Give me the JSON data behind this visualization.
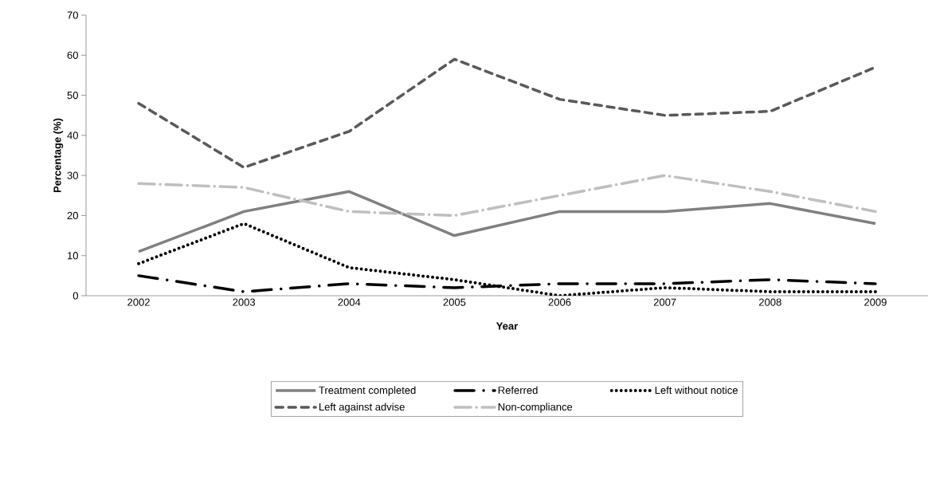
{
  "chart_data": {
    "type": "line",
    "xlabel": "Year",
    "ylabel": "Percentage (%)",
    "categories": [
      "2002",
      "2003",
      "2004",
      "2005",
      "2006",
      "2007",
      "2008",
      "2009"
    ],
    "series": [
      {
        "name": "Treatment completed",
        "color": "#808080",
        "line_style": "solid",
        "values": [
          11,
          21,
          26,
          15,
          21,
          21,
          23,
          18
        ]
      },
      {
        "name": "Referred",
        "color": "#000000",
        "line_style": "longdashdot",
        "values": [
          5,
          1,
          3,
          2,
          3,
          3,
          4,
          3
        ]
      },
      {
        "name": "Left without notice",
        "color": "#000000",
        "line_style": "dotted",
        "values": [
          8,
          18,
          7,
          4,
          0,
          2,
          1,
          1
        ]
      },
      {
        "name": "Left against advise",
        "color": "#595959",
        "line_style": "dashed",
        "values": [
          48,
          32,
          41,
          59,
          49,
          45,
          46,
          57
        ]
      },
      {
        "name": "Non-compliance",
        "color": "#bfbfbf",
        "line_style": "dashdot",
        "values": [
          28,
          27,
          21,
          20,
          25,
          30,
          26,
          21
        ]
      }
    ],
    "ylim": [
      0,
      70
    ],
    "yticks": [
      0,
      10,
      20,
      30,
      40,
      50,
      60,
      70
    ],
    "grid": false,
    "legend": "bottom",
    "marker": "none"
  }
}
